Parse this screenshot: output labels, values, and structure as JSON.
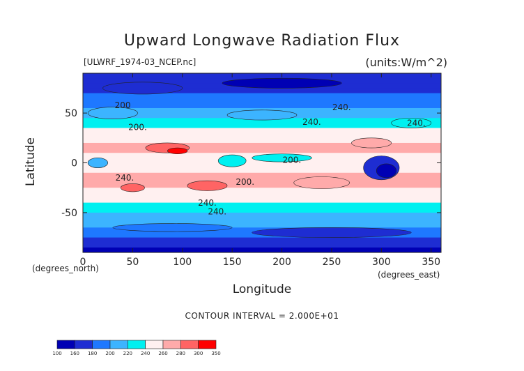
{
  "chart_data": {
    "type": "heatmap",
    "title": "Upward Longwave Radiation Flux",
    "subtitle_left": "[ULWRF_1974-03_NCEP.nc]",
    "units": "(units:W/m^2)",
    "xlabel": "Longitude",
    "ylabel": "Latitude",
    "x_unit": "(degrees_east)",
    "y_unit": "(degrees_north)",
    "xlim": [
      0,
      360
    ],
    "ylim": [
      -90,
      90
    ],
    "x_ticks": [
      0,
      50,
      100,
      150,
      200,
      250,
      300,
      350
    ],
    "y_ticks": [
      -50,
      0,
      50
    ],
    "contour_interval_text": "CONTOUR INTERVAL = 2.000E+01",
    "contour_labels": [
      "200",
      "240.",
      "200.",
      "240.",
      "240.",
      "240.",
      "240.",
      "240.",
      "200.",
      "200."
    ],
    "colorbar": {
      "levels": [
        100,
        160,
        180,
        200,
        220,
        240,
        260,
        280,
        300,
        350
      ],
      "colors": [
        "#0000b4",
        "#1e2dd2",
        "#1e78ff",
        "#3cb4ff",
        "#00f0f0",
        "#fff0f0",
        "#ffaaaa",
        "#ff6464",
        "#ff0000"
      ]
    },
    "zonal_profile": {
      "latitudes": [
        90,
        75,
        60,
        45,
        30,
        15,
        0,
        -15,
        -30,
        -45,
        -60,
        -75,
        -90
      ],
      "values": [
        165,
        175,
        195,
        215,
        245,
        265,
        250,
        265,
        255,
        230,
        205,
        180,
        150
      ]
    }
  }
}
